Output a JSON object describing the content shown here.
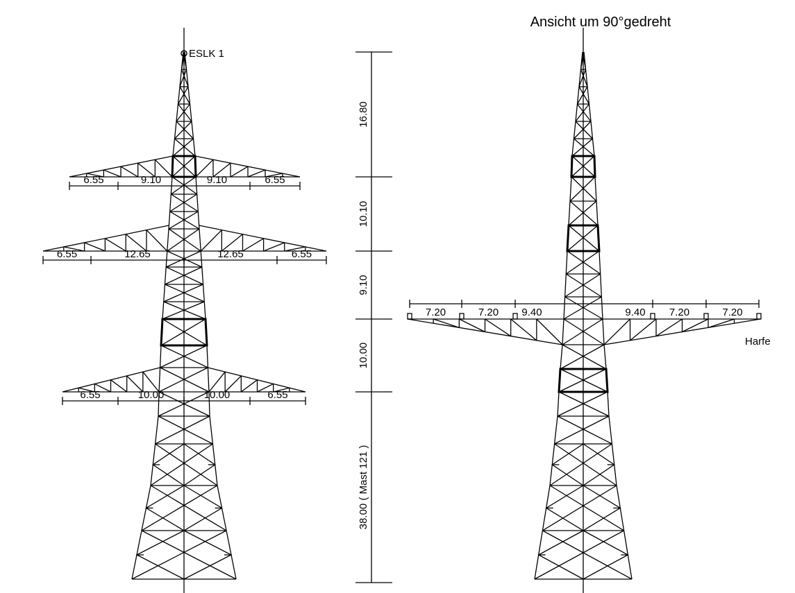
{
  "title": "Ansicht um 90°gedreht",
  "left_view": {
    "top_label": "ESLK 1",
    "crossarms": [
      {
        "dims": [
          "6.55",
          "9.10",
          "9.10",
          "6.55"
        ]
      },
      {
        "dims": [
          "6.55",
          "12.65",
          "12.65",
          "6.55"
        ]
      },
      {
        "dims": [
          "6.55",
          "10.00",
          "10.00",
          "6.55"
        ]
      }
    ]
  },
  "height_dims": [
    "16.80",
    "10.10",
    "9.10",
    "10.00",
    "38.00 ( Mast 121 )"
  ],
  "right_view": {
    "crossarm_dims": [
      "7.20",
      "7.20",
      "9.40",
      "9.40",
      "7.20",
      "7.20"
    ],
    "label": "Harfe"
  }
}
